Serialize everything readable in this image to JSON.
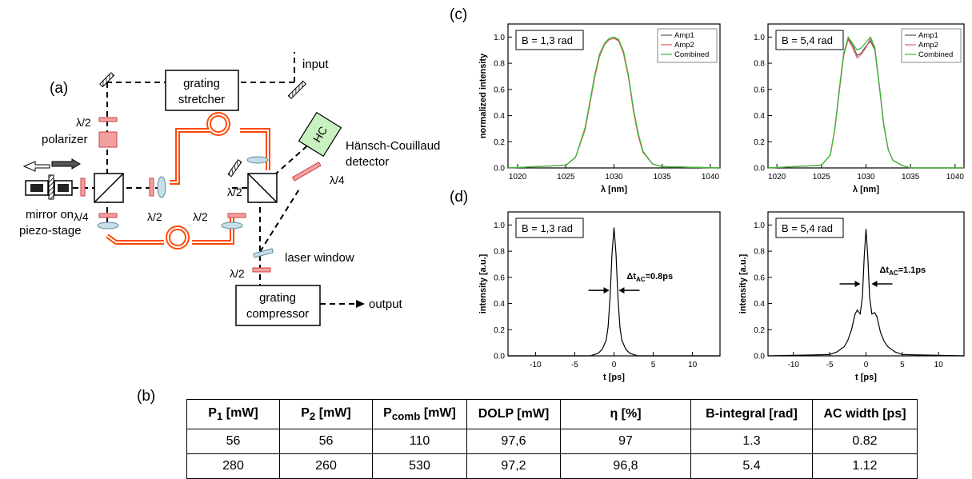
{
  "labels": {
    "a": "(a)",
    "b": "(b)",
    "c": "(c)",
    "d": "(d)"
  },
  "schematic": {
    "input": "input",
    "output": "output",
    "stretcher_l1": "grating",
    "stretcher_l2": "stretcher",
    "compressor_l1": "grating",
    "compressor_l2": "compressor",
    "hc_box": "HC",
    "hc_l1": "Hänsch-Couillaud",
    "hc_l2": "detector",
    "polarizer": "polarizer",
    "mirror_l1": "mirror on",
    "mirror_l2": "piezo-stage",
    "laser_window": "laser window",
    "half_wave": "λ/2",
    "quarter_wave": "λ/4",
    "colors": {
      "fiber": "#ff4a0a",
      "waveplate": "#f4a0a0",
      "lens": "#c6dee8",
      "hc_fill": "#c8f0c0"
    }
  },
  "chart_data": [
    {
      "id": "c-left",
      "type": "line",
      "annotation": "B = 1,3 rad",
      "xlabel": "λ [nm]",
      "ylabel": "normalized intensity",
      "xlim": [
        1019,
        1041
      ],
      "ylim": [
        0,
        1.1
      ],
      "xticks": [
        1020,
        1025,
        1030,
        1035,
        1040
      ],
      "yticks": [
        0.0,
        0.2,
        0.4,
        0.6,
        0.8,
        1.0
      ],
      "legend": "top-right",
      "series": [
        {
          "name": "Amp1",
          "color": "#555555",
          "x": [
            1019,
            1025,
            1026,
            1027,
            1027.5,
            1028,
            1028.5,
            1029,
            1029.5,
            1030,
            1030.5,
            1031,
            1031.5,
            1032,
            1032.5,
            1033,
            1034,
            1035,
            1041
          ],
          "y": [
            0.0,
            0.02,
            0.08,
            0.3,
            0.5,
            0.7,
            0.86,
            0.95,
            0.99,
            1.0,
            0.97,
            0.88,
            0.7,
            0.45,
            0.26,
            0.12,
            0.03,
            0.01,
            0.0
          ]
        },
        {
          "name": "Amp2",
          "color": "#e06060",
          "x": [
            1019,
            1025,
            1026,
            1027,
            1027.5,
            1028,
            1028.5,
            1029,
            1029.5,
            1030,
            1030.5,
            1031,
            1031.5,
            1032,
            1032.5,
            1033,
            1034,
            1035,
            1041
          ],
          "y": [
            0.0,
            0.02,
            0.08,
            0.29,
            0.49,
            0.69,
            0.85,
            0.94,
            0.98,
            0.99,
            0.97,
            0.87,
            0.69,
            0.44,
            0.25,
            0.12,
            0.03,
            0.01,
            0.0
          ]
        },
        {
          "name": "Combined",
          "color": "#33bb33",
          "x": [
            1019,
            1025,
            1026,
            1027,
            1027.5,
            1028,
            1028.5,
            1029,
            1029.5,
            1030,
            1030.5,
            1031,
            1031.5,
            1032,
            1032.5,
            1033,
            1034,
            1035,
            1041
          ],
          "y": [
            0.0,
            0.02,
            0.08,
            0.31,
            0.51,
            0.71,
            0.87,
            0.95,
            0.99,
            1.0,
            0.98,
            0.89,
            0.71,
            0.46,
            0.27,
            0.13,
            0.03,
            0.01,
            0.0
          ]
        }
      ]
    },
    {
      "id": "c-right",
      "type": "line",
      "annotation": "B = 5,4 rad",
      "xlabel": "λ [nm]",
      "ylabel": "",
      "xlim": [
        1019,
        1041
      ],
      "ylim": [
        0,
        1.1
      ],
      "xticks": [
        1020,
        1025,
        1030,
        1035,
        1040
      ],
      "yticks": [
        0.0,
        0.2,
        0.4,
        0.6,
        0.8,
        1.0
      ],
      "legend": "top-right",
      "series": [
        {
          "name": "Amp1",
          "color": "#555555",
          "x": [
            1019,
            1025,
            1026,
            1026.5,
            1027,
            1027.5,
            1028,
            1028.5,
            1029,
            1029.5,
            1030,
            1030.5,
            1031,
            1031.5,
            1032,
            1032.5,
            1033,
            1034,
            1035,
            1041
          ],
          "y": [
            0.0,
            0.02,
            0.1,
            0.3,
            0.6,
            0.88,
            0.99,
            0.94,
            0.86,
            0.88,
            0.93,
            0.97,
            0.9,
            0.62,
            0.32,
            0.14,
            0.06,
            0.02,
            0.0,
            0.0
          ]
        },
        {
          "name": "Amp2",
          "color": "#e06060",
          "x": [
            1019,
            1025,
            1026,
            1026.5,
            1027,
            1027.5,
            1028,
            1028.5,
            1029,
            1029.5,
            1030,
            1030.5,
            1031,
            1031.5,
            1032,
            1032.5,
            1033,
            1034,
            1035,
            1041
          ],
          "y": [
            0.0,
            0.02,
            0.1,
            0.29,
            0.58,
            0.86,
            0.98,
            0.92,
            0.84,
            0.87,
            0.92,
            0.99,
            0.91,
            0.63,
            0.33,
            0.14,
            0.06,
            0.02,
            0.0,
            0.0
          ]
        },
        {
          "name": "Combined",
          "color": "#33bb33",
          "x": [
            1019,
            1025,
            1026,
            1026.5,
            1027,
            1027.5,
            1028,
            1028.5,
            1029,
            1029.5,
            1030,
            1030.5,
            1031,
            1031.5,
            1032,
            1032.5,
            1033,
            1034,
            1035,
            1041
          ],
          "y": [
            0.0,
            0.02,
            0.1,
            0.3,
            0.59,
            0.87,
            1.0,
            0.95,
            0.9,
            0.92,
            0.96,
            1.0,
            0.92,
            0.63,
            0.33,
            0.14,
            0.06,
            0.02,
            0.0,
            0.0
          ]
        }
      ]
    },
    {
      "id": "d-left",
      "type": "line",
      "annotation": "B = 1,3 rad",
      "xlabel": "t [ps]",
      "ylabel": "intensity [a.u.]",
      "xlim": [
        -13.5,
        13.5
      ],
      "ylim": [
        0,
        1.1
      ],
      "xticks": [
        -10,
        -5,
        0,
        5,
        10
      ],
      "yticks": [
        0.0,
        0.2,
        0.4,
        0.6,
        0.8,
        1.0
      ],
      "width_label_main": "Δt",
      "width_label_sub": "AC",
      "width_label_value": "=0.8ps",
      "width_at": 0.5,
      "width_fwhm": 0.8,
      "series": [
        {
          "name": "",
          "color": "#000000",
          "x": [
            -13.5,
            -3,
            -2,
            -1.5,
            -1,
            -0.75,
            -0.5,
            -0.25,
            0,
            0.25,
            0.5,
            0.75,
            1,
            1.5,
            2,
            3,
            13.5
          ],
          "y": [
            0.0,
            0.0,
            0.02,
            0.05,
            0.12,
            0.22,
            0.45,
            0.78,
            0.98,
            0.78,
            0.45,
            0.22,
            0.12,
            0.05,
            0.02,
            0.0,
            0.0
          ]
        }
      ]
    },
    {
      "id": "d-right",
      "type": "line",
      "annotation": "B = 5,4 rad",
      "xlabel": "t [ps]",
      "ylabel": "intensity [a.u.]",
      "xlim": [
        -13.5,
        13.5
      ],
      "ylim": [
        0,
        1.1
      ],
      "xticks": [
        -10,
        -5,
        0,
        5,
        10
      ],
      "yticks": [
        0.0,
        0.2,
        0.4,
        0.6,
        0.8,
        1.0
      ],
      "width_label_main": "Δt",
      "width_label_sub": "AC",
      "width_label_value": "=1.1ps",
      "width_at": 0.55,
      "width_fwhm": 1.1,
      "series": [
        {
          "name": "",
          "color": "#000000",
          "x": [
            -13.5,
            -5,
            -4,
            -3,
            -2.5,
            -2,
            -1.5,
            -1.2,
            -0.8,
            -0.5,
            -0.25,
            0,
            0.25,
            0.5,
            0.8,
            1.2,
            1.5,
            2,
            2.5,
            3,
            4,
            5,
            13.5
          ],
          "y": [
            0.0,
            0.01,
            0.03,
            0.07,
            0.12,
            0.2,
            0.32,
            0.35,
            0.32,
            0.45,
            0.75,
            0.97,
            0.75,
            0.45,
            0.32,
            0.33,
            0.3,
            0.18,
            0.11,
            0.07,
            0.03,
            0.01,
            0.0
          ]
        }
      ]
    }
  ],
  "table": {
    "headers": [
      {
        "main": "P",
        "sub": "1",
        "unit": " [mW]"
      },
      {
        "main": "P",
        "sub": "2",
        "unit": " [mW]"
      },
      {
        "main": "P",
        "sub": "comb",
        "unit": " [mW]"
      },
      {
        "main": "DOLP",
        "sub": "",
        "unit": " [mW]"
      },
      {
        "main": "η",
        "sub": "",
        "unit": " [%]"
      },
      {
        "main": "B-integral",
        "sub": "",
        "unit": " [rad]"
      },
      {
        "main": "AC width",
        "sub": "",
        "unit": " [ps]"
      }
    ],
    "rows": [
      [
        "56",
        "56",
        "110",
        "97,6",
        "97",
        "1.3",
        "0.82"
      ],
      [
        "280",
        "260",
        "530",
        "97,2",
        "96,8",
        "5.4",
        "1.12"
      ]
    ]
  }
}
